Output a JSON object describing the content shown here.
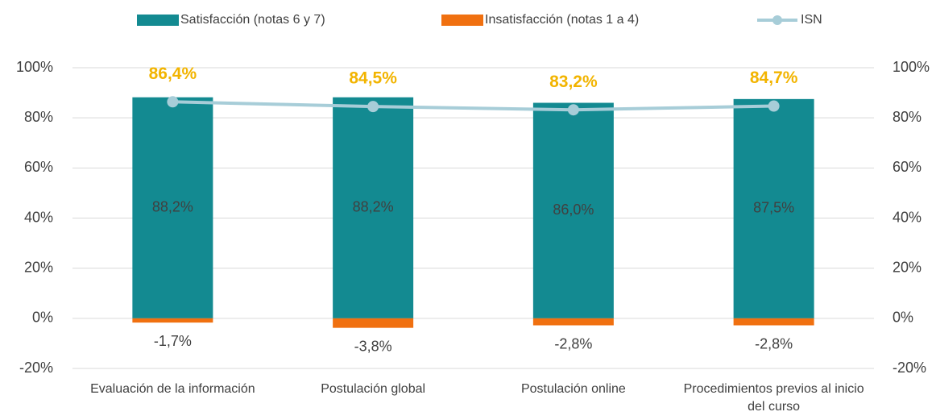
{
  "chart_data": {
    "type": "bar",
    "stacked": true,
    "categories": [
      "Evaluación de la información",
      "Postulación global",
      "Postulación online",
      "Procedimientos previos al inicio del curso"
    ],
    "series": [
      {
        "name": "Satisfacción (notas 6 y 7)",
        "color": "#138a91",
        "values": [
          88.2,
          88.2,
          86.0,
          87.5
        ],
        "value_labels": [
          "88,2%",
          "88,2%",
          "86,0%",
          "87,5%"
        ]
      },
      {
        "name": "Insatisfacción (notas 1 a 4)",
        "color": "#f07010",
        "values": [
          -1.7,
          -3.8,
          -2.8,
          -2.8
        ],
        "value_labels": [
          "-1,7%",
          "-3,8%",
          "-2,8%",
          "-2,8%"
        ]
      },
      {
        "name": "ISN",
        "type": "line",
        "axis": "y2",
        "color": "#a7cdd8",
        "values": [
          86.4,
          84.5,
          83.2,
          84.7
        ],
        "value_labels": [
          "86,4%",
          "84,5%",
          "83,2%",
          "84,7%"
        ]
      }
    ],
    "ylim": [
      -20,
      100
    ],
    "yticks": [
      {
        "value": -20,
        "label": "-20%"
      },
      {
        "value": 0,
        "label": "0%"
      },
      {
        "value": 20,
        "label": "20%"
      },
      {
        "value": 40,
        "label": "40%"
      },
      {
        "value": 60,
        "label": "60%"
      },
      {
        "value": 80,
        "label": "80%"
      },
      {
        "value": 100,
        "label": "100%"
      }
    ],
    "y2lim": [
      -20,
      100
    ],
    "y2ticks": [
      {
        "value": -20,
        "label": "-20%"
      },
      {
        "value": 0,
        "label": "0%"
      },
      {
        "value": 20,
        "label": "20%"
      },
      {
        "value": 40,
        "label": "40%"
      },
      {
        "value": 60,
        "label": "60%"
      },
      {
        "value": 80,
        "label": "80%"
      },
      {
        "value": 100,
        "label": "100%"
      }
    ],
    "grid": true,
    "legend": "top"
  }
}
